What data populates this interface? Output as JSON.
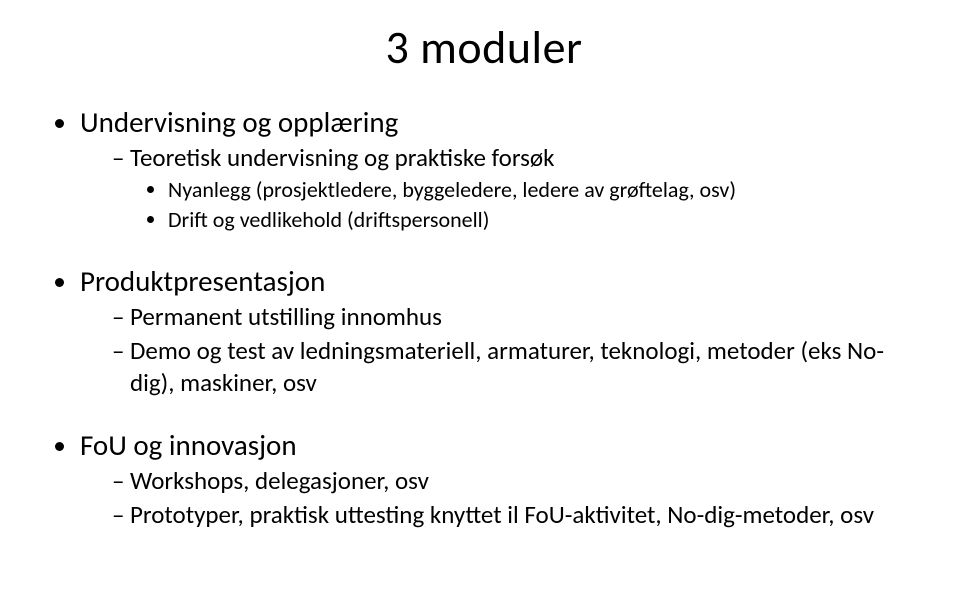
{
  "title": "3 moduler",
  "sections": [
    {
      "label": "Undervisning og opplæring",
      "items": [
        {
          "label": "Teoretisk undervisning og praktiske forsøk",
          "subitems": [
            "Nyanlegg (prosjektledere, byggeledere, ledere av grøftelag, osv)",
            "Drift og vedlikehold (driftspersonell)"
          ]
        }
      ]
    },
    {
      "label": "Produktpresentasjon",
      "items": [
        {
          "label": "Permanent utstilling innomhus"
        },
        {
          "label": "Demo og test av ledningsmateriell, armaturer, teknologi, metoder (eks No-dig), maskiner, osv"
        }
      ]
    },
    {
      "label": "FoU og innovasjon",
      "items": [
        {
          "label": "Workshops, delegasjoner, osv"
        },
        {
          "label": "Prototyper, praktisk uttesting knyttet il FoU-aktivitet, No-dig-metoder, osv"
        }
      ]
    }
  ],
  "style": {
    "background_color": "#ffffff",
    "text_color": "#000000",
    "font_family": "Calibri",
    "title_fontsize": 46,
    "level1_fontsize": 29,
    "level2_fontsize": 25,
    "level3_fontsize": 22,
    "bullet_level1": "disc",
    "bullet_level2": "dash",
    "bullet_level3": "disc"
  }
}
